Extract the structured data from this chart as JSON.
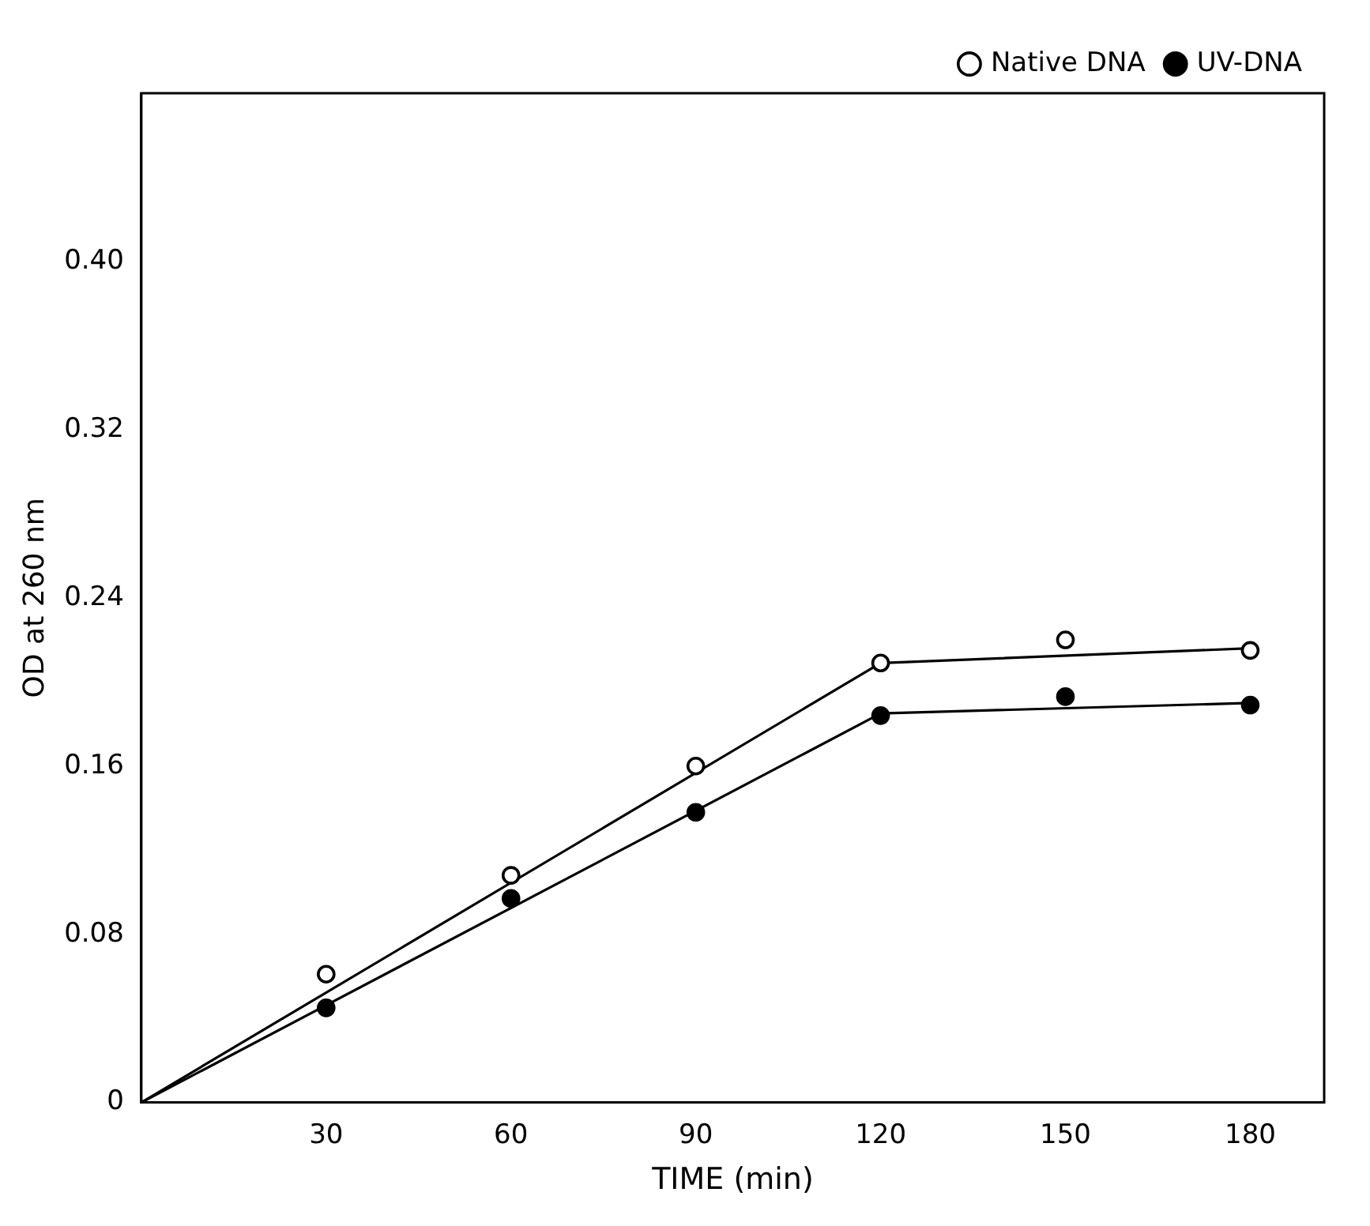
{
  "chart_data": {
    "type": "scatter",
    "xlabel": "TIME (min)",
    "ylabel": "OD at 260 nm",
    "xlim": [
      0,
      192
    ],
    "xticks": [
      30,
      60,
      90,
      120,
      150,
      180
    ],
    "ylim": [
      0,
      0.48
    ],
    "yticks": [
      0,
      {
        "value": 0.08,
        "label": "0.08"
      },
      {
        "value": 0.16,
        "label": "0.16"
      },
      {
        "value": 0.24,
        "label": "0.24"
      },
      {
        "value": 0.32,
        "label": "0.32"
      },
      {
        "value": 0.4,
        "label": "0.40"
      }
    ],
    "grid": false,
    "legend": "top right",
    "marker": "circle",
    "series": [
      {
        "name": "Native DNA",
        "color": "#000000",
        "x": [
          30,
          60,
          90,
          120,
          150,
          180
        ],
        "values": [
          0.061,
          0.108,
          0.16,
          0.209,
          0.22,
          0.215
        ]
      },
      {
        "name": "UV-DNA",
        "color": "#000000",
        "x": [
          30,
          60,
          90,
          120,
          150,
          180
        ],
        "values": [
          0.045,
          0.097,
          0.138,
          0.184,
          0.193,
          0.189
        ]
      },
      {
        "type": "line",
        "color": "#000000",
        "marker": "none",
        "x": [
          0,
          120,
          180
        ],
        "values": [
          0,
          0.209,
          0.216
        ]
      },
      {
        "type": "line",
        "color": "#000000",
        "marker": "none",
        "x": [
          0,
          120,
          180
        ],
        "values": [
          0,
          0.185,
          0.19
        ]
      }
    ]
  }
}
